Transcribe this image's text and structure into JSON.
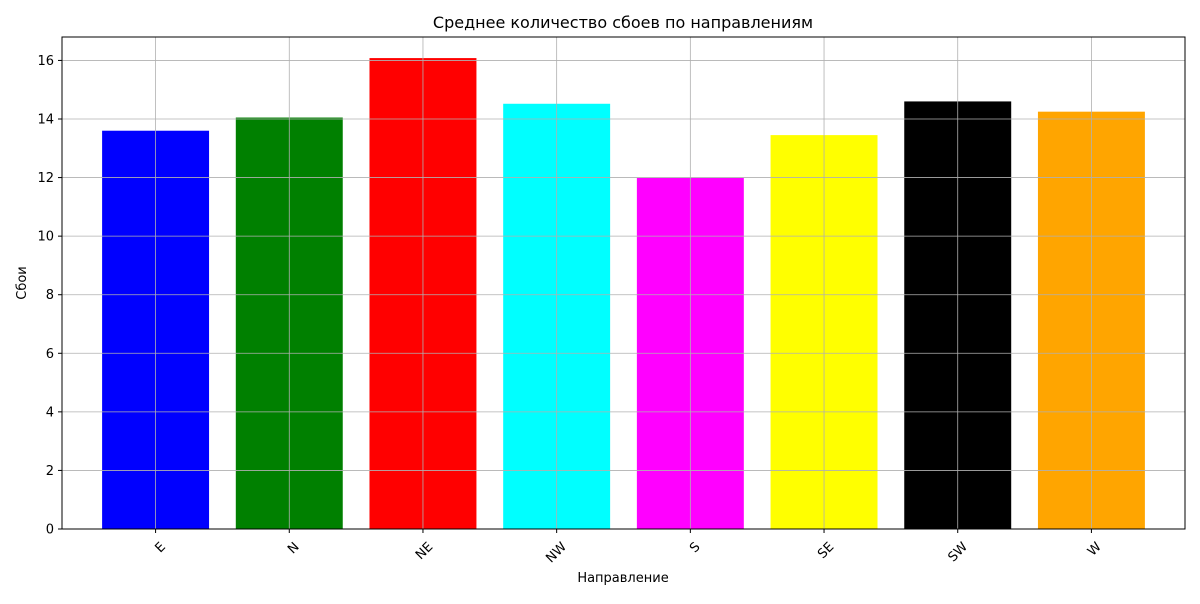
{
  "chart_data": {
    "type": "bar",
    "title": "Среднее количество сбоев по направлениям",
    "xlabel": "Направление",
    "ylabel": "Сбои",
    "categories": [
      "E",
      "N",
      "NE",
      "NW",
      "S",
      "SE",
      "SW",
      "W"
    ],
    "values": [
      13.6,
      14.05,
      16.08,
      14.52,
      12.0,
      13.45,
      14.6,
      14.25
    ],
    "colors": [
      "#0000ff",
      "#008000",
      "#ff0000",
      "#00ffff",
      "#ff00ff",
      "#ffff00",
      "#000000",
      "#ffa500"
    ],
    "yticks": [
      0,
      2,
      4,
      6,
      8,
      10,
      12,
      14,
      16
    ],
    "ylim": [
      0,
      16.8
    ],
    "grid": true,
    "xtick_rotation": 45
  }
}
